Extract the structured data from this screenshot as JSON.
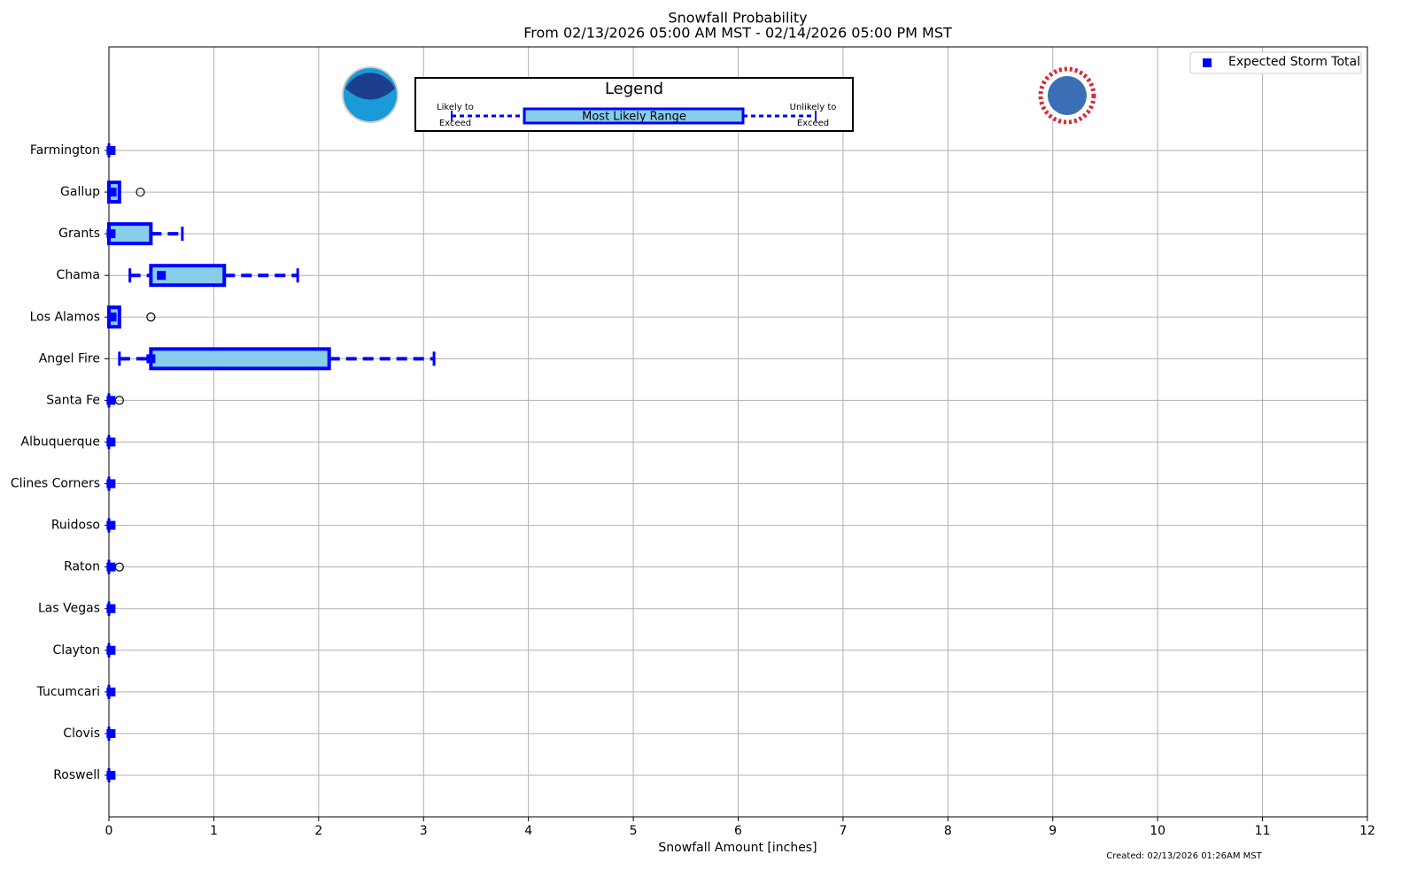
{
  "chart_data": {
    "type": "boxplot",
    "title": "Snowfall Probability",
    "subtitle": "From 02/13/2026 05:00 AM MST - 02/14/2026 05:00 PM MST",
    "xlabel": "Snowfall Amount [inches]",
    "footnote": "Created: 02/13/2026 01:26AM MST",
    "categories": [
      "Farmington",
      "Gallup",
      "Grants",
      "Chama",
      "Los Alamos",
      "Angel Fire",
      "Santa Fe",
      "Albuquerque",
      "Clines Corners",
      "Ruidoso",
      "Raton",
      "Las Vegas",
      "Clayton",
      "Tucumcari",
      "Clovis",
      "Roswell"
    ],
    "whislo": [
      0,
      0,
      0,
      0.2,
      0,
      0.1,
      0,
      0,
      0,
      0,
      0,
      0,
      0,
      0,
      0,
      0
    ],
    "q1": [
      0,
      0,
      0,
      0.4,
      0,
      0.4,
      0,
      0,
      0,
      0,
      0,
      0,
      0,
      0,
      0,
      0
    ],
    "q3": [
      0,
      0.1,
      0.4,
      1.1,
      0.1,
      2.1,
      0,
      0,
      0,
      0,
      0,
      0,
      0,
      0,
      0,
      0
    ],
    "whishi": [
      0,
      0.1,
      0.7,
      1.8,
      0.1,
      3.1,
      0,
      0,
      0,
      0,
      0,
      0,
      0,
      0,
      0,
      0
    ],
    "mean": [
      0.02,
      0.03,
      0.02,
      0.5,
      0.03,
      0.4,
      0.02,
      0.02,
      0.02,
      0.02,
      0.02,
      0.02,
      0.02,
      0.02,
      0.02,
      0.02
    ],
    "fliers": [
      [],
      [
        0.3
      ],
      [],
      [],
      [
        0.4
      ],
      [],
      [
        0.1
      ],
      [],
      [],
      [],
      [
        0.1
      ],
      [],
      [],
      [],
      [],
      []
    ],
    "mean_name": "Expected Storm Total",
    "box_color": "#87ceeb",
    "edge_color": "#0000ff",
    "xlim": [
      0,
      12
    ],
    "xticks": [
      0,
      1,
      2,
      3,
      4,
      5,
      6,
      7,
      8,
      9,
      10,
      11,
      12
    ],
    "grid": true,
    "legend_inset": {
      "title": "Legend",
      "low_label": [
        "Likely to",
        "Exceed"
      ],
      "box_label": "Most Likely Range",
      "high_label": [
        "Unlikely to",
        "Exceed"
      ]
    }
  }
}
